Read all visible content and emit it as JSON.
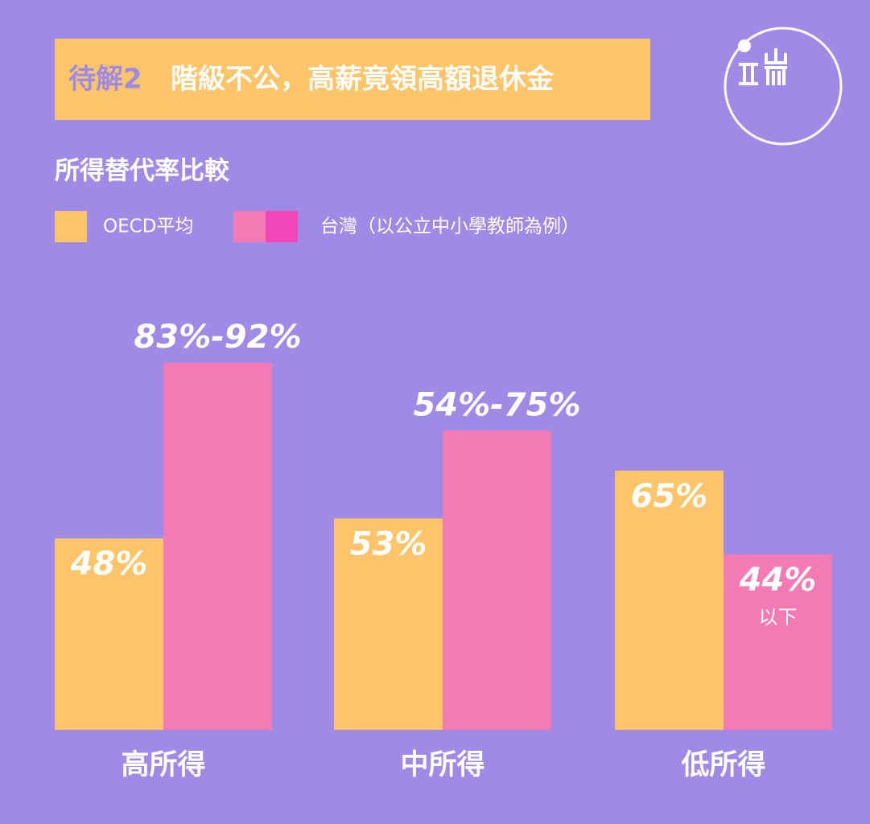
{
  "chart_data": {
    "type": "bar",
    "title_prefix": "待解2",
    "title": "階級不公，高薪竟領高額退休金",
    "subtitle": "所得替代率比較",
    "categories": [
      "高所得",
      "中所得",
      "低所得"
    ],
    "series": [
      {
        "name": "OECD平均",
        "color": "#fdc46a",
        "values": [
          48,
          53,
          65
        ],
        "value_labels": [
          "48%",
          "53%",
          "65%"
        ]
      },
      {
        "name": "台灣（以公立中小學教師為例）",
        "color": "#f47ab4",
        "legend_colors": [
          "#f47ab4",
          "#f346b8"
        ],
        "values": [
          92,
          75,
          44
        ],
        "value_labels": [
          "83%-92%",
          "54%-75%",
          "44%"
        ],
        "value_notes": [
          null,
          null,
          "以下"
        ]
      }
    ]
  }
}
